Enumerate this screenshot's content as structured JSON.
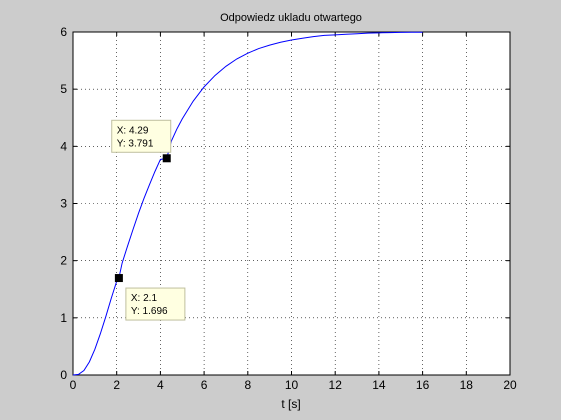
{
  "chart_data": {
    "type": "line",
    "title": "Odpowiedz ukladu otwartego",
    "xlabel": "t [s]",
    "ylabel": "",
    "xlim": [
      0,
      20
    ],
    "ylim": [
      0,
      6
    ],
    "xticks": [
      "0",
      "2",
      "4",
      "6",
      "8",
      "10",
      "12",
      "14",
      "16",
      "18",
      "20"
    ],
    "yticks": [
      "0",
      "1",
      "2",
      "3",
      "4",
      "5",
      "6"
    ],
    "grid": true,
    "series": [
      {
        "color": "#0000ff",
        "x": [
          0,
          0.25,
          0.5,
          0.75,
          1,
          1.25,
          1.5,
          1.75,
          2,
          2.1,
          2.25,
          2.5,
          2.75,
          3,
          3.25,
          3.5,
          3.75,
          4,
          4.29,
          4.5,
          4.75,
          5,
          5.5,
          6,
          6.5,
          7,
          7.5,
          8,
          8.5,
          9,
          9.5,
          10,
          10.5,
          11,
          11.5,
          12,
          12.5,
          13,
          13.5,
          14,
          14.5,
          15,
          15.5,
          16
        ],
        "y": [
          0,
          0.011,
          0.079,
          0.23,
          0.45,
          0.72,
          1.02,
          1.34,
          1.64,
          1.696,
          1.96,
          2.26,
          2.55,
          2.83,
          3.09,
          3.33,
          3.56,
          3.77,
          3.791,
          4.09,
          4.3,
          4.48,
          4.79,
          5.04,
          5.24,
          5.4,
          5.53,
          5.63,
          5.71,
          5.77,
          5.82,
          5.86,
          5.89,
          5.92,
          5.94,
          5.95,
          5.96,
          5.97,
          5.98,
          5.985,
          5.99,
          5.993,
          5.995,
          5.996
        ]
      }
    ],
    "datatips": [
      {
        "x": 2.1,
        "y": 1.696,
        "label_x": "X: 2.1",
        "label_y": "Y: 1.696"
      },
      {
        "x": 4.29,
        "y": 3.791,
        "label_x": "X: 4.29",
        "label_y": "Y: 3.791"
      }
    ]
  }
}
